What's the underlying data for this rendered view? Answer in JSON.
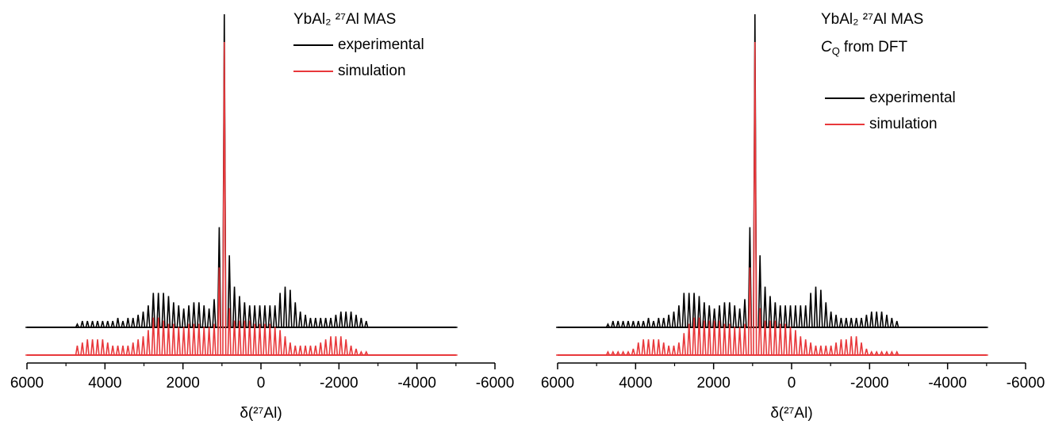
{
  "chart_data": [
    {
      "type": "stick-spectrum",
      "title": "YbAl₂ ²⁷Al MAS",
      "x_label": "δ(²⁷Al)",
      "xlim": [
        6000,
        -6000
      ],
      "xticks": [
        6000,
        4000,
        2000,
        0,
        -2000,
        -4000,
        -6000
      ],
      "xminorticks": [
        5000,
        3000,
        1000,
        -1000,
        -3000,
        -5000
      ],
      "x": [
        6000,
        4710,
        4580,
        4450,
        4320,
        4190,
        4060,
        3930,
        3800,
        3670,
        3540,
        3410,
        3280,
        3150,
        3020,
        2890,
        2760,
        2630,
        2500,
        2370,
        2240,
        2110,
        1980,
        1850,
        1720,
        1590,
        1460,
        1330,
        1200,
        1070,
        940,
        810,
        680,
        550,
        420,
        290,
        160,
        30,
        -100,
        -230,
        -360,
        -490,
        -620,
        -750,
        -880,
        -1010,
        -1140,
        -1270,
        -1400,
        -1530,
        -1660,
        -1790,
        -1920,
        -2050,
        -2180,
        -2310,
        -2440,
        -2570,
        -2700,
        -5000
      ],
      "series": [
        {
          "name": "experimental",
          "color": "#000000",
          "values": [
            0,
            1,
            2,
            2,
            2,
            2,
            2,
            2,
            2,
            3,
            2,
            3,
            3,
            4,
            5,
            7,
            11,
            11,
            11,
            10,
            8,
            7,
            6,
            7,
            8,
            8,
            7,
            6,
            9,
            32,
            100,
            23,
            13,
            10,
            8,
            7,
            7,
            7,
            7,
            7,
            7,
            11,
            13,
            12,
            8,
            5,
            4,
            3,
            3,
            3,
            3,
            3,
            4,
            5,
            5,
            5,
            4,
            3,
            2,
            0
          ]
        },
        {
          "name": "simulation",
          "color": "#e8383b",
          "values": [
            0,
            3,
            4,
            5,
            5,
            5,
            5,
            4,
            3,
            3,
            3,
            3,
            4,
            5,
            6,
            8,
            12,
            12,
            11,
            10,
            10,
            9,
            9,
            10,
            10,
            10,
            9,
            9,
            10,
            28,
            100,
            15,
            11,
            11,
            11,
            11,
            10,
            10,
            10,
            10,
            9,
            8,
            6,
            4,
            3,
            3,
            3,
            3,
            3,
            4,
            5,
            6,
            6,
            6,
            5,
            3,
            2,
            1,
            1,
            0
          ]
        }
      ]
    },
    {
      "type": "stick-spectrum",
      "title": "YbAl₂ ²⁷Al MAS",
      "annotation": [
        "C",
        "Q",
        "from DFT"
      ],
      "x_label": "δ(²⁷Al)",
      "xlim": [
        6000,
        -6000
      ],
      "xticks": [
        6000,
        4000,
        2000,
        0,
        -2000,
        -4000,
        -6000
      ],
      "xminorticks": [
        5000,
        3000,
        1000,
        -1000,
        -3000,
        -5000
      ],
      "x": [
        6000,
        4710,
        4580,
        4450,
        4320,
        4190,
        4060,
        3930,
        3800,
        3670,
        3540,
        3410,
        3280,
        3150,
        3020,
        2890,
        2760,
        2630,
        2500,
        2370,
        2240,
        2110,
        1980,
        1850,
        1720,
        1590,
        1460,
        1330,
        1200,
        1070,
        940,
        810,
        680,
        550,
        420,
        290,
        160,
        30,
        -100,
        -230,
        -360,
        -490,
        -620,
        -750,
        -880,
        -1010,
        -1140,
        -1270,
        -1400,
        -1530,
        -1660,
        -1790,
        -1920,
        -2050,
        -2180,
        -2310,
        -2440,
        -2570,
        -2700,
        -5000
      ],
      "series": [
        {
          "name": "experimental",
          "color": "#000000",
          "values": [
            0,
            1,
            2,
            2,
            2,
            2,
            2,
            2,
            2,
            3,
            2,
            3,
            3,
            4,
            5,
            7,
            11,
            11,
            11,
            10,
            8,
            7,
            6,
            7,
            8,
            8,
            7,
            6,
            9,
            32,
            100,
            23,
            13,
            10,
            8,
            7,
            7,
            7,
            7,
            7,
            7,
            11,
            13,
            12,
            8,
            5,
            4,
            3,
            3,
            3,
            3,
            3,
            4,
            5,
            5,
            5,
            4,
            3,
            2,
            0
          ]
        },
        {
          "name": "simulation",
          "color": "#e8383b",
          "values": [
            0,
            1,
            1,
            1,
            1,
            1,
            2,
            4,
            5,
            5,
            5,
            5,
            4,
            3,
            3,
            4,
            7,
            10,
            12,
            12,
            11,
            11,
            11,
            11,
            10,
            10,
            9,
            9,
            10,
            28,
            100,
            15,
            11,
            11,
            11,
            10,
            10,
            9,
            8,
            6,
            5,
            4,
            3,
            3,
            3,
            3,
            4,
            5,
            5,
            6,
            6,
            4,
            2,
            1,
            1,
            1,
            1,
            1,
            1,
            0
          ]
        }
      ]
    }
  ]
}
